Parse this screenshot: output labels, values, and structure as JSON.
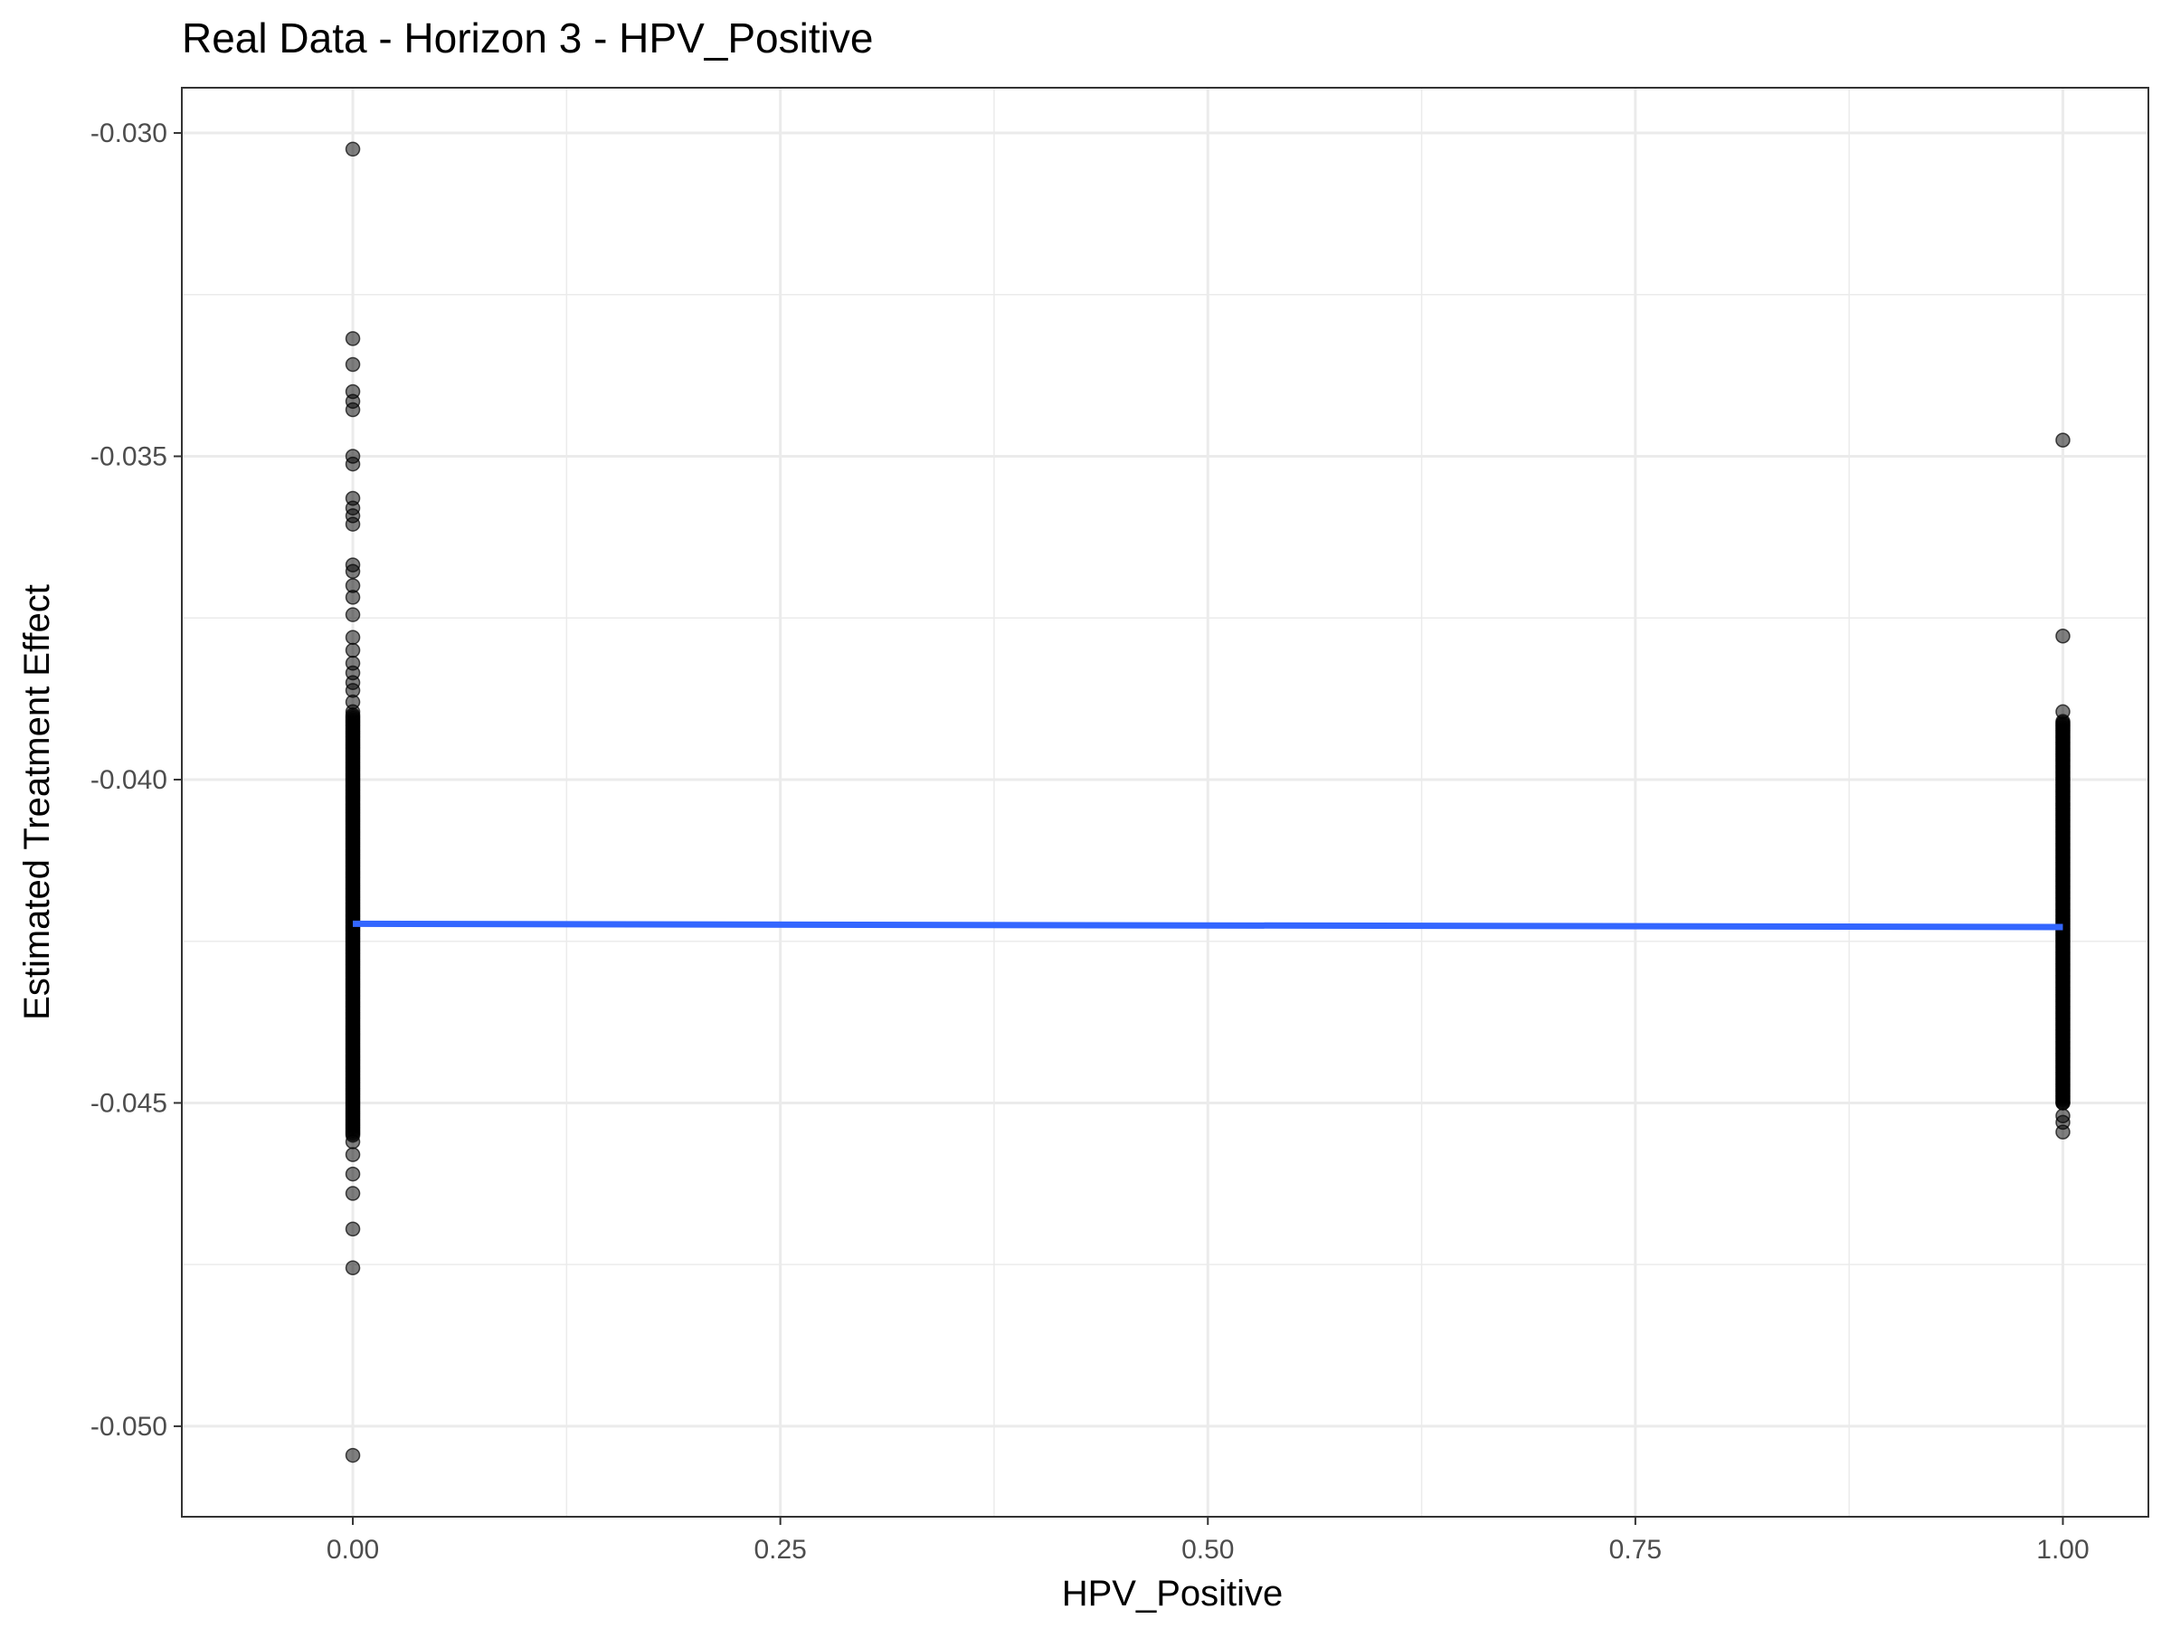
{
  "chart_data": {
    "type": "scatter",
    "title": "Real Data - Horizon 3 - HPV_Positive",
    "xlabel": "HPV_Positive",
    "ylabel": "Estimated Treatment Effect",
    "xlim": [
      -0.1,
      1.05
    ],
    "ylim": [
      -0.0514,
      -0.0293
    ],
    "x_ticks": [
      0.0,
      0.25,
      0.5,
      0.75,
      1.0
    ],
    "x_tick_labels": [
      "0.00",
      "0.25",
      "0.50",
      "0.75",
      "1.00"
    ],
    "y_ticks": [
      -0.05,
      -0.045,
      -0.04,
      -0.035,
      -0.03
    ],
    "y_tick_labels": [
      "-0.050",
      "-0.045",
      "-0.040",
      "-0.035",
      "-0.030"
    ],
    "grid": true,
    "legend": "none",
    "series": [
      {
        "kind": "points",
        "color": "#000000",
        "opacity": 0.5,
        "groups": [
          {
            "x": 0.0,
            "outliers": [
              -0.03025,
              -0.03318,
              -0.03358,
              -0.034,
              -0.03415,
              -0.03428,
              -0.035,
              -0.03512,
              -0.03565,
              -0.0358,
              -0.03592,
              -0.03605,
              -0.03668,
              -0.03678,
              -0.037,
              -0.03718,
              -0.03745,
              -0.0378,
              -0.038,
              -0.0382,
              -0.03835,
              -0.0385,
              -0.03862,
              -0.0388,
              -0.03895,
              -0.0456,
              -0.0458,
              -0.0461,
              -0.0464,
              -0.04695,
              -0.04755,
              -0.05045
            ],
            "dense_range": [
              -0.0455,
              -0.039
            ]
          },
          {
            "x": 1.0,
            "outliers": [
              -0.03475,
              -0.03778,
              -0.03895,
              -0.045,
              -0.0452,
              -0.0453,
              -0.04545
            ],
            "dense_range": [
              -0.045,
              -0.0391
            ]
          }
        ]
      },
      {
        "kind": "fit-line",
        "color": "#3366ff",
        "x": [
          0.0,
          1.0
        ],
        "y": [
          -0.04223,
          -0.04228
        ]
      }
    ]
  }
}
